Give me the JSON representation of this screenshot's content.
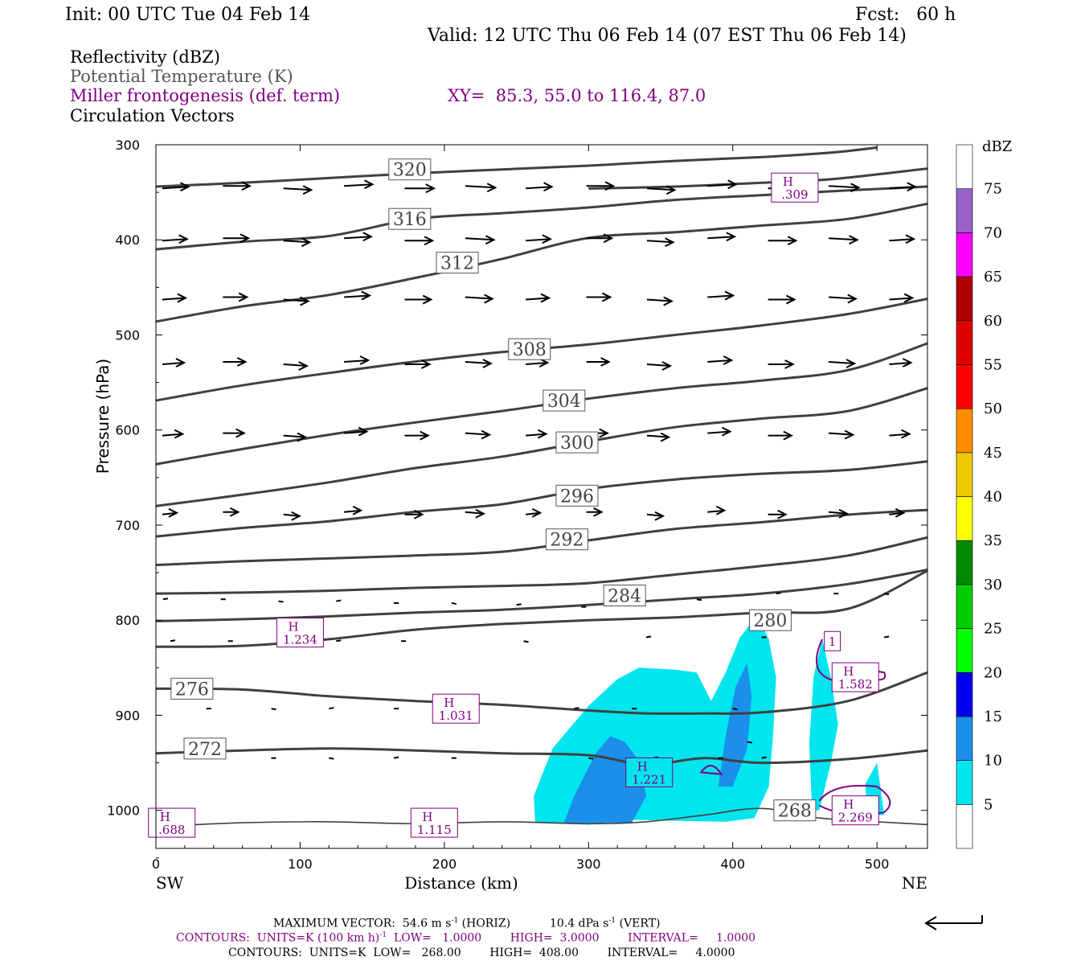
{
  "header": {
    "init": "Init: 00 UTC Tue 04 Feb 14",
    "fcst": "Fcst:   60 h",
    "valid": "Valid: 12 UTC Thu 06 Feb 14 (07 EST Thu 06 Feb 14)"
  },
  "legend": {
    "reflectivity": "Reflectivity (dBZ)",
    "theta": "Potential Temperature (K)",
    "miller": "Miller frontogenesis (def. term)",
    "xy": "XY=  85.3, 55.0 to 116.4, 87.0",
    "vectors": "Circulation Vectors"
  },
  "colors": {
    "theta": "#404040",
    "miller": "#800080",
    "refl_5": "#00e5ee",
    "refl_10": "#1c8fea",
    "vector": "#000000"
  },
  "chart_data": {
    "type": "cross-section",
    "xlabel": "Distance (km)",
    "ylabel": "Pressure (hPa)",
    "xlim": [
      0,
      535
    ],
    "ylim": [
      1040,
      300
    ],
    "x_ticks": [
      0,
      100,
      200,
      300,
      400,
      500
    ],
    "y_ticks": [
      300,
      400,
      500,
      600,
      700,
      800,
      900,
      1000
    ],
    "x_end_labels": {
      "left": "SW",
      "right": "NE"
    },
    "colorbar": {
      "unit": "dBZ",
      "levels": [
        5,
        10,
        15,
        20,
        25,
        30,
        35,
        40,
        45,
        50,
        55,
        60,
        65,
        70,
        75
      ],
      "colors": [
        "#ffffff",
        "#00e5ee",
        "#1c8fea",
        "#0000ee",
        "#00ff00",
        "#00cd00",
        "#008b00",
        "#ffff00",
        "#eec900",
        "#ff8c00",
        "#ff0000",
        "#dd0000",
        "#b00000",
        "#ff00ff",
        "#9a60c8",
        "#ffffff"
      ]
    },
    "theta_contours": [
      {
        "level": 320,
        "label": "320",
        "label_at": [
          176,
          326
        ],
        "points": [
          [
            0,
            344
          ],
          [
            60,
            340
          ],
          [
            120,
            335
          ],
          [
            180,
            330
          ],
          [
            240,
            326
          ],
          [
            300,
            322
          ],
          [
            360,
            317
          ],
          [
            420,
            313
          ],
          [
            470,
            308
          ],
          [
            500,
            303
          ]
        ]
      },
      {
        "level": null,
        "points": [
          [
            300,
            346
          ],
          [
            360,
            344
          ],
          [
            420,
            340
          ],
          [
            470,
            336
          ],
          [
            535,
            325
          ]
        ]
      },
      {
        "level": 316,
        "label": "316",
        "label_at": [
          176,
          378
        ],
        "points": [
          [
            0,
            410
          ],
          [
            60,
            402
          ],
          [
            120,
            396
          ],
          [
            180,
            378
          ],
          [
            240,
            372
          ],
          [
            300,
            366
          ],
          [
            360,
            358
          ],
          [
            420,
            353
          ],
          [
            480,
            348
          ],
          [
            535,
            344
          ]
        ]
      },
      {
        "level": 312,
        "label": "312",
        "label_at": [
          209,
          424
        ],
        "points": [
          [
            0,
            486
          ],
          [
            60,
            470
          ],
          [
            120,
            458
          ],
          [
            180,
            440
          ],
          [
            240,
            420
          ],
          [
            300,
            398
          ],
          [
            360,
            392
          ],
          [
            420,
            385
          ],
          [
            480,
            378
          ],
          [
            535,
            362
          ]
        ]
      },
      {
        "level": 308,
        "label": "308",
        "label_at": [
          259,
          515
        ],
        "points": [
          [
            0,
            569
          ],
          [
            60,
            553
          ],
          [
            120,
            540
          ],
          [
            180,
            528
          ],
          [
            240,
            518
          ],
          [
            300,
            510
          ],
          [
            360,
            500
          ],
          [
            420,
            490
          ],
          [
            480,
            478
          ],
          [
            535,
            462
          ]
        ]
      },
      {
        "level": 304,
        "label": "304",
        "label_at": [
          283,
          569
        ],
        "points": [
          [
            0,
            636
          ],
          [
            60,
            620
          ],
          [
            120,
            605
          ],
          [
            180,
            592
          ],
          [
            240,
            580
          ],
          [
            300,
            567
          ],
          [
            360,
            556
          ],
          [
            420,
            548
          ],
          [
            480,
            537
          ],
          [
            535,
            509
          ]
        ]
      },
      {
        "level": 300,
        "label": "300",
        "label_at": [
          292,
          613
        ],
        "points": [
          [
            0,
            680
          ],
          [
            60,
            668
          ],
          [
            120,
            655
          ],
          [
            180,
            640
          ],
          [
            240,
            628
          ],
          [
            300,
            612
          ],
          [
            360,
            597
          ],
          [
            420,
            588
          ],
          [
            480,
            580
          ],
          [
            535,
            556
          ]
        ]
      },
      {
        "level": 296,
        "label": "296",
        "label_at": [
          292,
          669
        ],
        "points": [
          [
            0,
            712
          ],
          [
            60,
            703
          ],
          [
            120,
            696
          ],
          [
            180,
            686
          ],
          [
            240,
            678
          ],
          [
            300,
            662
          ],
          [
            360,
            652
          ],
          [
            420,
            646
          ],
          [
            480,
            642
          ],
          [
            535,
            633
          ]
        ]
      },
      {
        "level": 292,
        "label": "292",
        "label_at": [
          285,
          715
        ],
        "points": [
          [
            0,
            742
          ],
          [
            60,
            738
          ],
          [
            120,
            735
          ],
          [
            180,
            732
          ],
          [
            240,
            728
          ],
          [
            300,
            716
          ],
          [
            360,
            704
          ],
          [
            420,
            697
          ],
          [
            480,
            689
          ],
          [
            535,
            684
          ]
        ]
      },
      {
        "level": 284,
        "label": "284",
        "label_at": [
          325,
          774
        ],
        "points": [
          [
            0,
            772
          ],
          [
            60,
            771
          ],
          [
            120,
            769
          ],
          [
            180,
            766
          ],
          [
            240,
            764
          ],
          [
            300,
            761
          ],
          [
            360,
            752
          ],
          [
            420,
            743
          ],
          [
            480,
            732
          ],
          [
            535,
            713
          ]
        ]
      },
      {
        "level": 280,
        "label": "280",
        "label_at": [
          426,
          800
        ],
        "points": [
          [
            0,
            801
          ],
          [
            60,
            799
          ],
          [
            120,
            796
          ],
          [
            180,
            792
          ],
          [
            240,
            789
          ],
          [
            300,
            784
          ],
          [
            360,
            778
          ],
          [
            420,
            772
          ],
          [
            480,
            762
          ],
          [
            535,
            747
          ]
        ]
      },
      {
        "level": null,
        "points": [
          [
            0,
            828
          ],
          [
            60,
            827
          ],
          [
            120,
            820
          ],
          [
            180,
            810
          ],
          [
            240,
            804
          ],
          [
            300,
            800
          ],
          [
            360,
            797
          ],
          [
            420,
            792
          ],
          [
            480,
            788
          ],
          [
            535,
            748
          ]
        ]
      },
      {
        "level": 276,
        "label": "276",
        "label_at": [
          25,
          872
        ],
        "points": [
          [
            0,
            872
          ],
          [
            60,
            873
          ],
          [
            120,
            880
          ],
          [
            180,
            885
          ],
          [
            240,
            889
          ],
          [
            300,
            895
          ],
          [
            340,
            898
          ],
          [
            380,
            898
          ],
          [
            420,
            897
          ],
          [
            480,
            885
          ],
          [
            535,
            855
          ]
        ]
      },
      {
        "level": 272,
        "label": "272",
        "label_at": [
          34,
          935
        ],
        "points": [
          [
            0,
            940
          ],
          [
            60,
            937
          ],
          [
            120,
            935
          ],
          [
            180,
            937
          ],
          [
            240,
            940
          ],
          [
            300,
            942
          ],
          [
            340,
            952
          ],
          [
            380,
            945
          ],
          [
            420,
            950
          ],
          [
            480,
            946
          ],
          [
            535,
            937
          ]
        ]
      },
      {
        "level": 268,
        "label": "268",
        "label_at": [
          443,
          1000
        ],
        "points": [
          [
            0,
            1017
          ],
          [
            60,
            1013
          ],
          [
            120,
            1012
          ],
          [
            180,
            1014
          ],
          [
            240,
            1012
          ],
          [
            300,
            1014
          ],
          [
            340,
            1012
          ],
          [
            380,
            1005
          ],
          [
            420,
            998
          ],
          [
            460,
            1008
          ],
          [
            500,
            1012
          ],
          [
            535,
            1015
          ]
        ]
      }
    ],
    "reflectivity_5dbz": [
      [
        263,
        1013
      ],
      [
        262,
        985
      ],
      [
        275,
        935
      ],
      [
        300,
        890
      ],
      [
        320,
        862
      ],
      [
        335,
        850
      ],
      [
        360,
        852
      ],
      [
        375,
        855
      ],
      [
        385,
        885
      ],
      [
        395,
        855
      ],
      [
        405,
        818
      ],
      [
        417,
        795
      ],
      [
        425,
        820
      ],
      [
        430,
        860
      ],
      [
        428,
        920
      ],
      [
        425,
        975
      ],
      [
        415,
        1008
      ],
      [
        395,
        1012
      ],
      [
        330,
        1010
      ],
      [
        300,
        1015
      ]
    ],
    "reflectivity_5dbz_b": [
      [
        455,
        1000
      ],
      [
        453,
        930
      ],
      [
        456,
        860
      ],
      [
        462,
        820
      ],
      [
        468,
        860
      ],
      [
        473,
        910
      ],
      [
        468,
        950
      ],
      [
        460,
        1000
      ]
    ],
    "reflectivity_5dbz_c": [
      [
        493,
        1005
      ],
      [
        492,
        972
      ],
      [
        500,
        950
      ],
      [
        505,
        1005
      ]
    ],
    "reflectivity_10dbz": [
      [
        283,
        1013
      ],
      [
        290,
        985
      ],
      [
        305,
        940
      ],
      [
        315,
        922
      ],
      [
        325,
        928
      ],
      [
        335,
        948
      ],
      [
        340,
        985
      ],
      [
        330,
        1013
      ]
    ],
    "reflectivity_10dbz_b": [
      [
        390,
        975
      ],
      [
        395,
        922
      ],
      [
        402,
        870
      ],
      [
        410,
        845
      ],
      [
        413,
        880
      ],
      [
        410,
        935
      ],
      [
        400,
        975
      ]
    ],
    "miller_maxima": [
      {
        "symbol": "H",
        "value": ".309",
        "at": [
          443,
          345
        ]
      },
      {
        "symbol": "H",
        "value": "1.234",
        "at": [
          100,
          813
        ]
      },
      {
        "symbol": "H",
        "value": "1.031",
        "at": [
          208,
          893
        ]
      },
      {
        "symbol": "H",
        "value": "1.221",
        "at": [
          342,
          960
        ]
      },
      {
        "symbol": "H",
        "value": "1.582",
        "at": [
          485,
          860
        ]
      },
      {
        "symbol": "H",
        "value": "2.269",
        "at": [
          485,
          1000
        ]
      },
      {
        "symbol": "H",
        "value": ".688",
        "at": [
          11,
          1013
        ]
      },
      {
        "symbol": "H",
        "value": "1.115",
        "at": [
          193,
          1013
        ]
      }
    ],
    "miller_contour_label": {
      "value": "1",
      "at": [
        469,
        822
      ]
    },
    "vector_rows": [
      {
        "p": 345,
        "x0": 0,
        "step": 42,
        "u": 36,
        "w": 0
      },
      {
        "p": 400,
        "x0": 0,
        "step": 42,
        "u": 34,
        "w": 0
      },
      {
        "p": 462,
        "x0": 0,
        "step": 42,
        "u": 32,
        "w": 0
      },
      {
        "p": 530,
        "x0": 0,
        "step": 42,
        "u": 30,
        "w": 0
      },
      {
        "p": 605,
        "x0": 0,
        "step": 42,
        "u": 28,
        "w": 0
      },
      {
        "p": 688,
        "x0": 0,
        "step": 42,
        "u": 20,
        "w": 0
      }
    ],
    "max_vector": {
      "horiz": "54.6",
      "vert": "10.4"
    }
  },
  "footer": {
    "max_vector": "MAXIMUM VECTOR:  54.6 m s",
    "max_vector_exp": "-1",
    "max_vector_horiz": " (HORIZ)           10.4 dPa s",
    "max_vector_exp2": "-1",
    "max_vector_vert": " (VERT)",
    "contours1": "CONTOURS:  UNITS=K (100 km h)",
    "contours1_exp": "-1",
    "contours1_rest": "  LOW=   1.0000        HIGH=  3.0000        INTERVAL=     1.0000",
    "contours2": "CONTOURS:  UNITS=K  LOW=   268.00        HIGH=  408.00        INTERVAL=     4.0000"
  }
}
